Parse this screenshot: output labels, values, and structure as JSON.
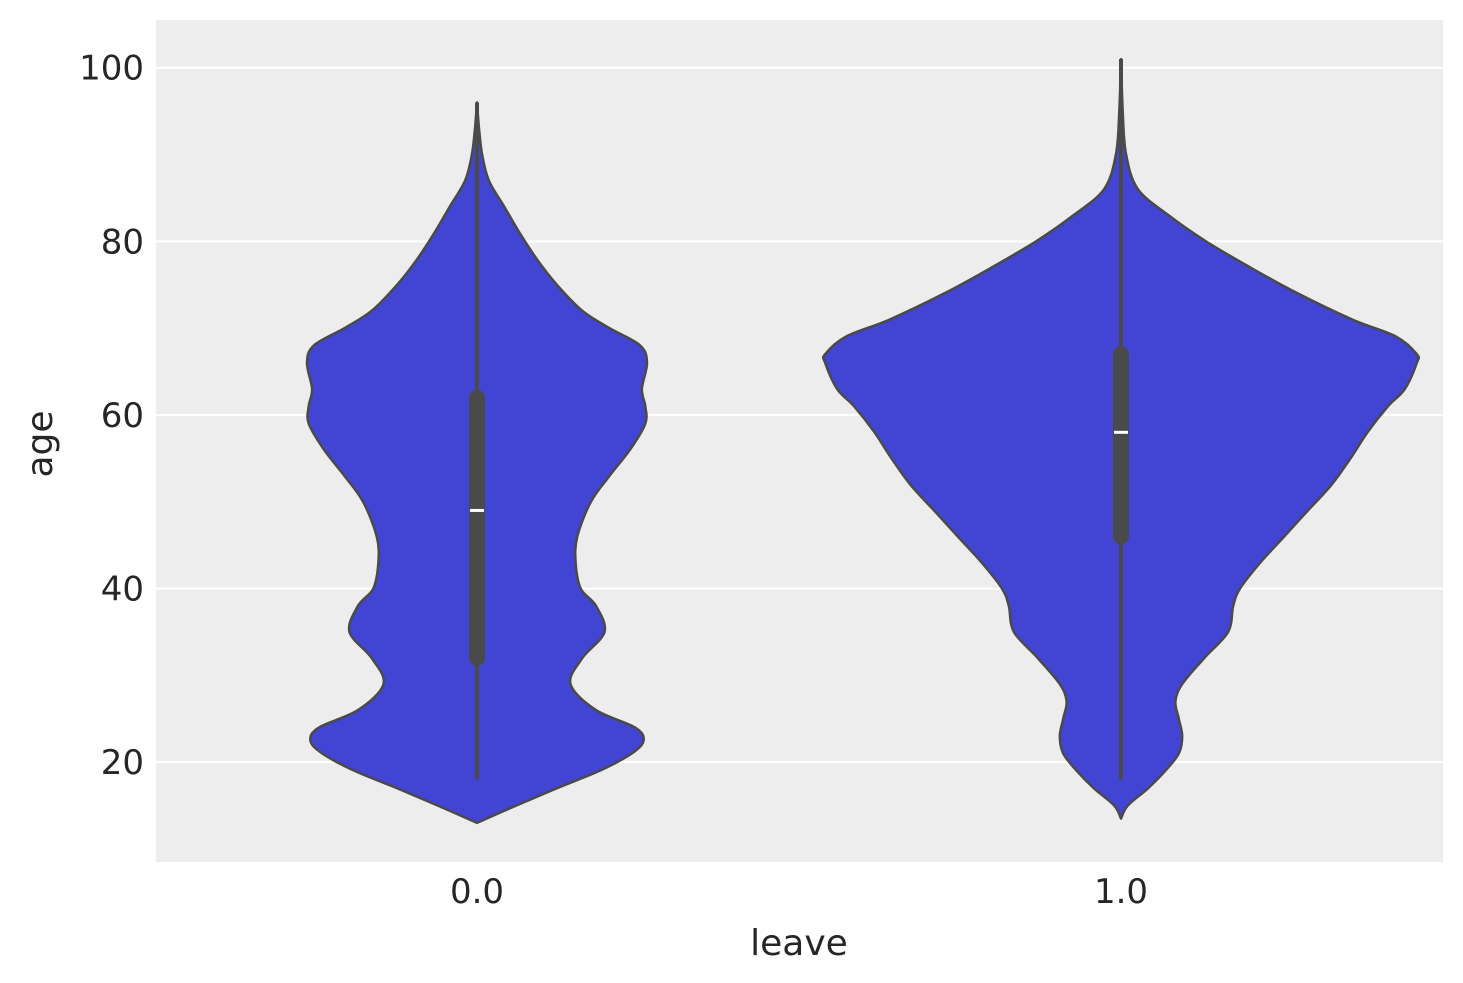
{
  "chart_data": {
    "type": "violin",
    "title": "",
    "xlabel": "leave",
    "ylabel": "age",
    "ylim": [
      8.5,
      105.5
    ],
    "yticks": [
      20,
      40,
      60,
      80,
      100
    ],
    "ytick_labels": [
      "20",
      "40",
      "60",
      "80",
      "100"
    ],
    "grid": true,
    "colors": {
      "fill": "#4245d4",
      "edge": "#4a4a4a",
      "box": "#4a4a4a",
      "median": "#ffffff",
      "background": "#ededed",
      "grid": "#ffffff"
    },
    "categories": [
      {
        "label": "0.0",
        "density_y": [
          13,
          15,
          17,
          19,
          21,
          22.5,
          24,
          26,
          29,
          32,
          35,
          38,
          40,
          43,
          46,
          50,
          53,
          56,
          59,
          61,
          63,
          66,
          68,
          70,
          72,
          75,
          78,
          81,
          84,
          87,
          90,
          93,
          96
        ],
        "density_width": [
          0.0,
          0.23,
          0.47,
          0.72,
          0.91,
          0.98,
          0.93,
          0.7,
          0.55,
          0.62,
          0.75,
          0.7,
          0.61,
          0.58,
          0.59,
          0.67,
          0.78,
          0.9,
          0.99,
          0.99,
          0.97,
          1.0,
          0.96,
          0.78,
          0.62,
          0.47,
          0.35,
          0.25,
          0.16,
          0.07,
          0.03,
          0.012,
          0.0
        ],
        "whisker_low": 18,
        "q1": 32,
        "median": 49,
        "q3": 62,
        "whisker_high": 96
      },
      {
        "label": "1.0",
        "density_y": [
          13.5,
          15,
          17,
          19,
          21,
          23,
          25,
          27,
          29,
          32,
          35,
          38,
          40,
          43,
          46,
          49,
          52,
          55,
          58,
          61,
          63,
          66,
          67,
          69,
          71,
          74,
          77,
          80,
          83,
          86,
          90,
          95,
          101
        ],
        "density_width": [
          0.0,
          0.04,
          0.16,
          0.26,
          0.34,
          0.36,
          0.34,
          0.32,
          0.36,
          0.49,
          0.63,
          0.66,
          0.7,
          0.82,
          0.96,
          1.1,
          1.24,
          1.35,
          1.45,
          1.57,
          1.67,
          1.74,
          1.74,
          1.62,
          1.36,
          1.04,
          0.76,
          0.5,
          0.28,
          0.1,
          0.03,
          0.01,
          0.0
        ],
        "whisker_low": 18,
        "q1": 46,
        "median": 58,
        "q3": 67,
        "whisker_high": 101
      }
    ]
  }
}
